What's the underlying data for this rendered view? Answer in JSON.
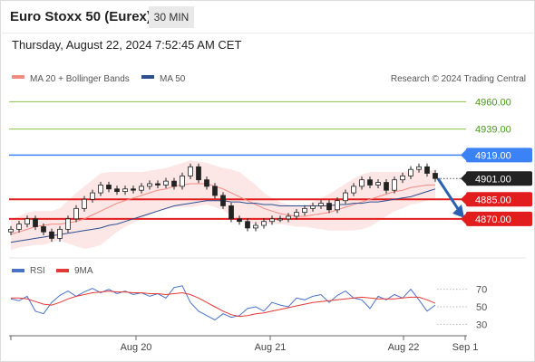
{
  "header": {
    "title": "Euro Stoxx 50 (Eurex)",
    "timeframe": "30 MIN",
    "datetime": "Thursday, August 22, 2024 7:52:45 AM CET"
  },
  "legend": {
    "item1": "MA 20 + Bollinger Bands",
    "item2": "MA 50",
    "credit": "Research © 2024 Trading Central",
    "rsi": "RSI",
    "ma9": "9MA"
  },
  "colors": {
    "ma20": "#f28b82",
    "ma50": "#2c4f8f",
    "bollinger_fill": "#fde2e2",
    "resistance_green": "#8bc34a",
    "resistance_blue": "#3b82f6",
    "support_red": "#e11d1d",
    "rsi": "#4a72c9",
    "rsi_ma": "#e53935",
    "arrow": "#2b5fb0",
    "candle": "#222222"
  },
  "chart_data": [
    {
      "type": "candlestick",
      "title": "Euro Stoxx 50 (Eurex)",
      "timeframe": "30 MIN",
      "x_tick_labels": [
        "Aug 20",
        "Aug 21",
        "Aug 22",
        "Sep 1"
      ],
      "ylim": [
        4840,
        4970
      ],
      "levels": [
        {
          "value": 4960.0,
          "label": "4960.00",
          "kind": "resistance",
          "color": "#8bc34a"
        },
        {
          "value": 4939.0,
          "label": "4939.00",
          "kind": "resistance",
          "color": "#8bc34a"
        },
        {
          "value": 4919.0,
          "label": "4919.00",
          "kind": "pivot",
          "color": "#3b82f6"
        },
        {
          "value": 4901.0,
          "label": "4901.00",
          "kind": "last-price",
          "color": "#222222"
        },
        {
          "value": 4885.0,
          "label": "4885.00",
          "kind": "support",
          "color": "#e11d1d"
        },
        {
          "value": 4870.0,
          "label": "4870.00",
          "kind": "support",
          "color": "#e11d1d"
        }
      ],
      "series": [
        {
          "name": "MA 20 + Bollinger Bands",
          "color": "#f28b82"
        },
        {
          "name": "MA 50",
          "color": "#2c4f8f"
        }
      ],
      "close": [
        4862,
        4866,
        4870,
        4864,
        4860,
        4855,
        4862,
        4870,
        4878,
        4885,
        4890,
        4896,
        4893,
        4891,
        4893,
        4892,
        4895,
        4897,
        4896,
        4899,
        4895,
        4903,
        4910,
        4900,
        4895,
        4888,
        4880,
        4870,
        4868,
        4863,
        4865,
        4868,
        4870,
        4870,
        4872,
        4875,
        4878,
        4880,
        4882,
        4877,
        4884,
        4890,
        4895,
        4900,
        4896,
        4898,
        4892,
        4900,
        4903,
        4908,
        4910,
        4905,
        4901
      ],
      "ma20": [
        4858,
        4860,
        4862,
        4864,
        4865,
        4866,
        4866,
        4867,
        4868,
        4870,
        4873,
        4876,
        4879,
        4882,
        4884,
        4886,
        4888,
        4890,
        4892,
        4893,
        4895,
        4896,
        4897,
        4897,
        4897,
        4895,
        4893,
        4890,
        4887,
        4884,
        4881,
        4878,
        4876,
        4874,
        4873,
        4872,
        4872,
        4873,
        4874,
        4875,
        4877,
        4879,
        4881,
        4883,
        4885,
        4887,
        4889,
        4891,
        4892,
        4894,
        4895,
        4896,
        4896
      ],
      "ma50": [
        4852,
        4853,
        4854,
        4855,
        4856,
        4857,
        4858,
        4859,
        4860,
        4861,
        4862,
        4863,
        4865,
        4866,
        4868,
        4870,
        4872,
        4874,
        4876,
        4878,
        4880,
        4881,
        4882,
        4883,
        4884,
        4884,
        4884,
        4883,
        4883,
        4882,
        4882,
        4881,
        4881,
        4880,
        4880,
        4880,
        4880,
        4880,
        4880,
        4880,
        4881,
        4881,
        4882,
        4882,
        4883,
        4883,
        4884,
        4885,
        4886,
        4887,
        4889,
        4891,
        4893
      ],
      "bb_upper": [
        4870,
        4872,
        4875,
        4876,
        4876,
        4876,
        4878,
        4884,
        4890,
        4895,
        4900,
        4905,
        4906,
        4906,
        4906,
        4906,
        4906,
        4907,
        4908,
        4909,
        4911,
        4913,
        4915,
        4914,
        4913,
        4911,
        4909,
        4908,
        4906,
        4901,
        4896,
        4890,
        4886,
        4883,
        4881,
        4880,
        4880,
        4883,
        4886,
        4889,
        4893,
        4897,
        4901,
        4904,
        4906,
        4906,
        4906,
        4906,
        4906,
        4907,
        4908,
        4908,
        4907
      ],
      "bb_lower": [
        4846,
        4848,
        4849,
        4850,
        4850,
        4852,
        4854,
        4851,
        4849,
        4847,
        4848,
        4850,
        4855,
        4860,
        4864,
        4867,
        4870,
        4873,
        4876,
        4877,
        4879,
        4879,
        4879,
        4880,
        4881,
        4879,
        4877,
        4872,
        4868,
        4867,
        4866,
        4866,
        4866,
        4866,
        4865,
        4864,
        4864,
        4863,
        4862,
        4861,
        4861,
        4861,
        4861,
        4862,
        4864,
        4868,
        4872,
        4876,
        4878,
        4881,
        4882,
        4884,
        4885
      ]
    },
    {
      "type": "line",
      "series": [
        {
          "name": "RSI",
          "color": "#4a72c9",
          "values": [
            59,
            57,
            62,
            45,
            42,
            55,
            63,
            68,
            62,
            67,
            71,
            66,
            70,
            65,
            68,
            64,
            66,
            62,
            65,
            60,
            72,
            74,
            55,
            45,
            40,
            35,
            42,
            38,
            40,
            48,
            50,
            45,
            55,
            52,
            50,
            60,
            58,
            62,
            64,
            55,
            63,
            68,
            60,
            58,
            48,
            62,
            58,
            64,
            60,
            70,
            58,
            45,
            52
          ]
        },
        {
          "name": "9MA",
          "color": "#e53935",
          "values": [
            60,
            60,
            59,
            56,
            53,
            52,
            55,
            59,
            62,
            64,
            66,
            67,
            68,
            67,
            67,
            66,
            66,
            65,
            65,
            64,
            65,
            66,
            64,
            60,
            55,
            50,
            45,
            41,
            39,
            40,
            42,
            43,
            45,
            47,
            49,
            51,
            53,
            55,
            56,
            57,
            58,
            59,
            60,
            61,
            60,
            59,
            59,
            59,
            60,
            61,
            61,
            58,
            54
          ]
        }
      ],
      "y_tick_labels": [
        "70",
        "50",
        "30"
      ],
      "ylim": [
        20,
        80
      ]
    }
  ]
}
